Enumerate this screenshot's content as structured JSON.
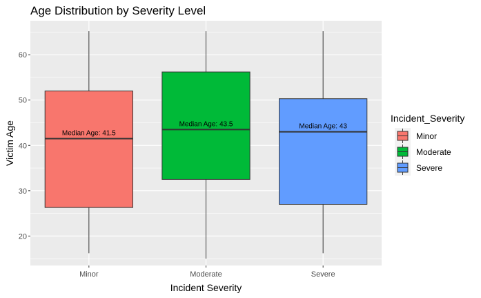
{
  "chart_data": {
    "type": "boxplot",
    "title": "Age Distribution by Severity Level",
    "xlabel": "Incident Severity",
    "ylabel": "Victim Age",
    "ylim": [
      13.5,
      67.5
    ],
    "yticks": [
      20,
      30,
      40,
      50,
      60
    ],
    "categories": [
      "Minor",
      "Moderate",
      "Severe"
    ],
    "boxes": [
      {
        "category": "Minor",
        "min": 16.2,
        "q1": 26.3,
        "median": 41.5,
        "q3": 52.0,
        "max": 65.2,
        "color": "#F8766D",
        "annotation": "Median Age: 41.5"
      },
      {
        "category": "Moderate",
        "min": 15.0,
        "q1": 32.5,
        "median": 43.5,
        "q3": 56.2,
        "max": 65.2,
        "color": "#00BA38",
        "annotation": "Median Age: 43.5"
      },
      {
        "category": "Severe",
        "min": 16.2,
        "q1": 27.0,
        "median": 43.0,
        "q3": 50.3,
        "max": 65.2,
        "color": "#619CFF",
        "annotation": "Median Age: 43"
      }
    ],
    "legend": {
      "title": "Incident_Severity",
      "placement": "right",
      "items": [
        "Minor",
        "Moderate",
        "Severe"
      ]
    },
    "grid": true,
    "panel_background": "#EBEBEB",
    "grid_color": "#FFFFFF"
  }
}
